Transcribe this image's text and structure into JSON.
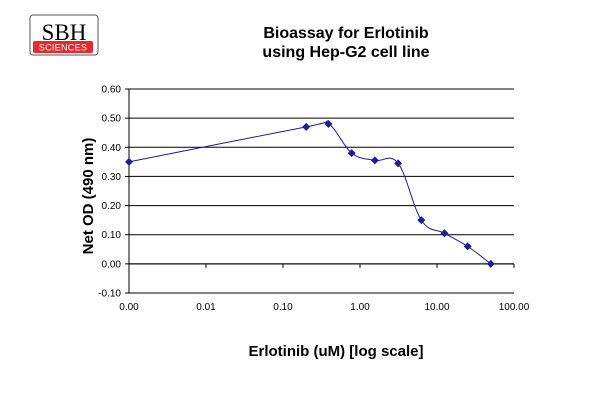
{
  "logo": {
    "top_text": "SBH",
    "bottom_text": "SCIENCES",
    "accent": "#e32b2b"
  },
  "chart_data": {
    "type": "line",
    "title": [
      "Bioassay for Erlotinib",
      "using Hep-G2 cell line"
    ],
    "xlabel": "Erlotinib (uM) [log scale]",
    "ylabel": "Net OD (490 nm)",
    "x_scale": "log",
    "x_tick_values": [
      0.001,
      0.01,
      0.1,
      1,
      10,
      100
    ],
    "x_tick_labels": [
      "0.00",
      "0.01",
      "0.10",
      "1.00",
      "10.00",
      "100.00"
    ],
    "ylim": [
      -0.1,
      0.6
    ],
    "y_tick_values": [
      -0.1,
      0.0,
      0.1,
      0.2,
      0.3,
      0.4,
      0.5,
      0.6
    ],
    "y_tick_labels": [
      "-0.10",
      "0.00",
      "0.10",
      "0.20",
      "0.30",
      "0.40",
      "0.50",
      "0.60"
    ],
    "grid": "horizontal",
    "legend": "none",
    "series": [
      {
        "color": "#1f1f8f",
        "marker": "diamond",
        "smoothed": true,
        "x": [
          0.001,
          0.2,
          0.39,
          0.78,
          1.56,
          3.13,
          6.25,
          12.5,
          25,
          50
        ],
        "y": [
          0.35,
          0.47,
          0.48,
          0.38,
          0.355,
          0.345,
          0.15,
          0.105,
          0.06,
          0.0
        ]
      }
    ]
  }
}
